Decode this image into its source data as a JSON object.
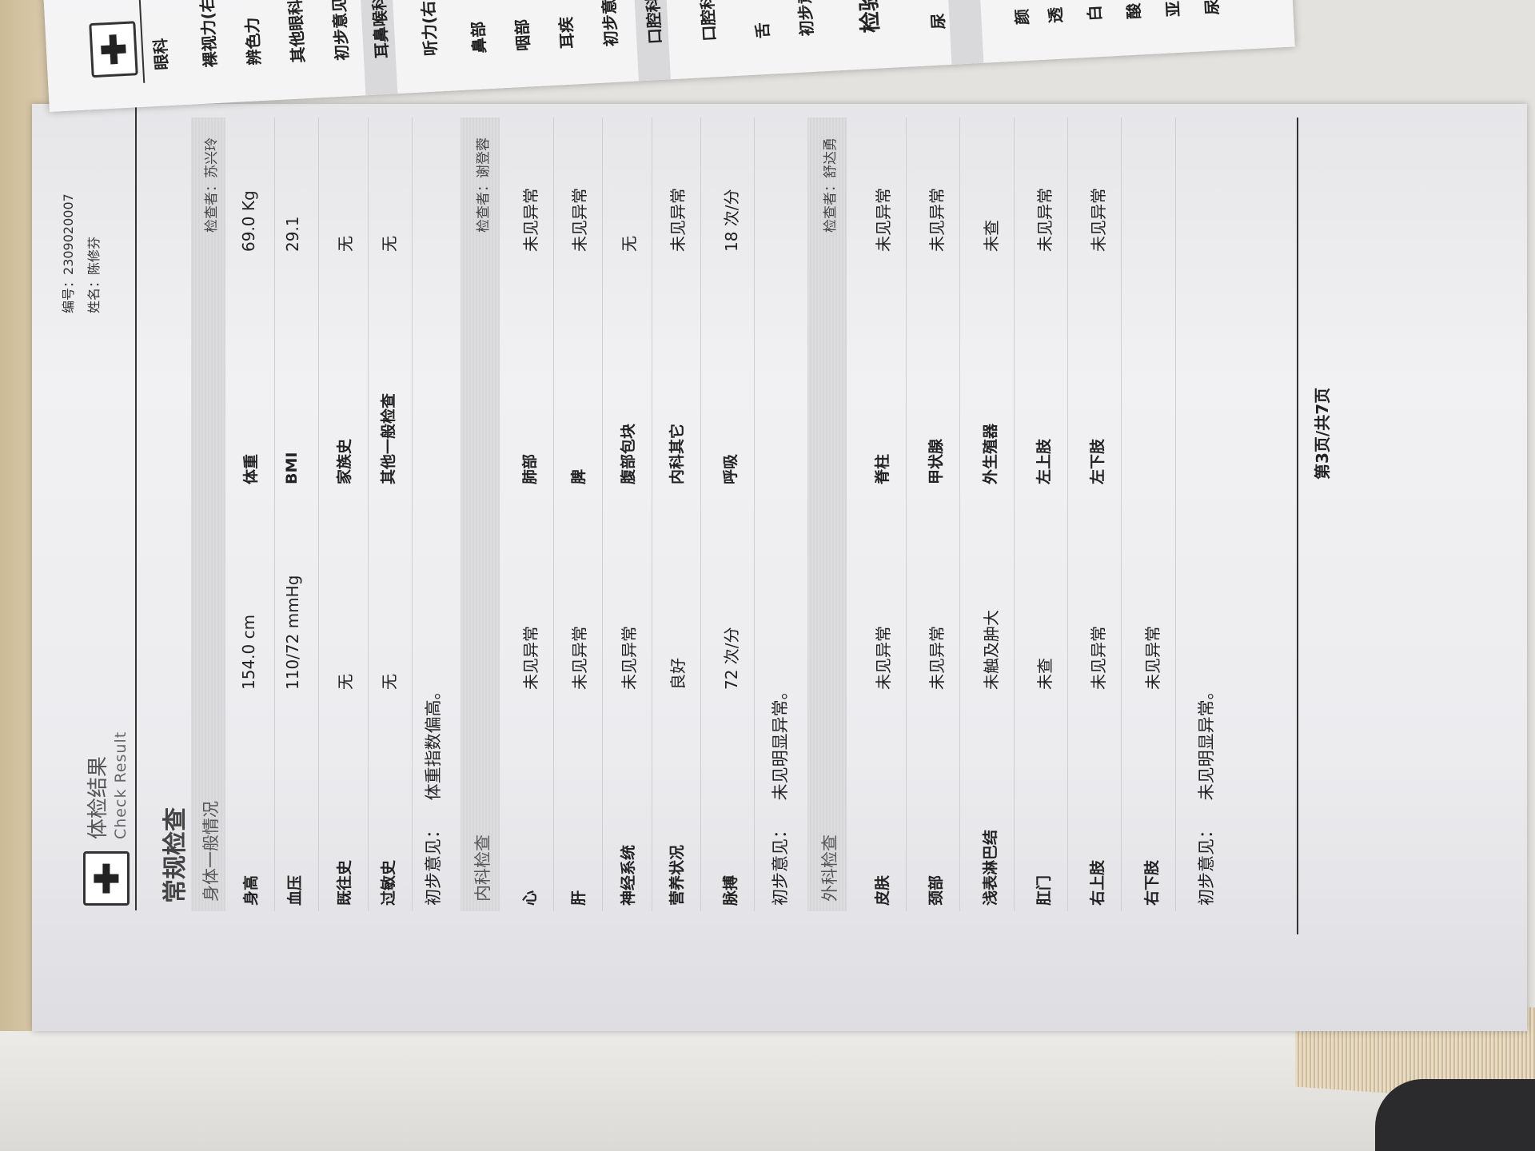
{
  "header": {
    "title_cn": "体检结果",
    "title_en": "Check Result",
    "id_label": "编号：",
    "id_value": "2309020007",
    "name_label": "姓名：",
    "name_value": "陈修芬"
  },
  "section_title": "常规检查",
  "sections": [
    {
      "name": "身体一般情况",
      "inspector": "检查者：苏兴玲",
      "rows": [
        [
          "身高",
          "154.0 cm",
          "体重",
          "69.0 Kg"
        ],
        [
          "血压",
          "110/72 mmHg",
          "BMI",
          "29.1"
        ],
        [
          "既往史",
          "无",
          "家族史",
          "无"
        ],
        [
          "过敏史",
          "无",
          "其他一般检查",
          "无"
        ]
      ],
      "opinion_label": "初步意见：",
      "opinion": "体重指数偏高。"
    },
    {
      "name": "内科检查",
      "inspector": "检查者：谢登蓉",
      "rows": [
        [
          "心",
          "未见异常",
          "肺部",
          "未见异常"
        ],
        [
          "肝",
          "未见异常",
          "脾",
          "未见异常"
        ],
        [
          "神经系统",
          "未见异常",
          "腹部包块",
          "无"
        ],
        [
          "营养状况",
          "良好",
          "内科其它",
          "未见异常"
        ],
        [
          "脉搏",
          "72 次/分",
          "呼吸",
          "18 次/分"
        ]
      ],
      "opinion_label": "初步意见：",
      "opinion": "未见明显异常。"
    },
    {
      "name": "外科检查",
      "inspector": "检查者：舒达勇",
      "rows": [
        [
          "皮肤",
          "未见异常",
          "脊柱",
          "未见异常"
        ],
        [
          "颈部",
          "未见异常",
          "甲状腺",
          "未见异常"
        ],
        [
          "浅表淋巴结",
          "未触及肿大",
          "外生殖器",
          "未查"
        ],
        [
          "肛门",
          "未查",
          "左上肢",
          "未见异常"
        ],
        [
          "右上肢",
          "未见异常",
          "左下肢",
          "未见异常"
        ],
        [
          "右下肢",
          "未见异常"
        ]
      ],
      "opinion_label": "初步意见：",
      "opinion": "未见明显异常。"
    }
  ],
  "footer": {
    "page_info": "第3页/共7页"
  },
  "next_page": {
    "labels": [
      "眼科",
      "裸视力(右",
      "辨色力",
      "其他眼科",
      "初步意见",
      "耳鼻喉科",
      "听力(右",
      "鼻部",
      "咽部",
      "耳疾",
      "初步意",
      "口腔科",
      "口腔科",
      "舌",
      "初步意",
      "检验",
      "尿",
      "颜",
      "透",
      "白",
      "酸",
      "亚",
      "尿"
    ]
  }
}
